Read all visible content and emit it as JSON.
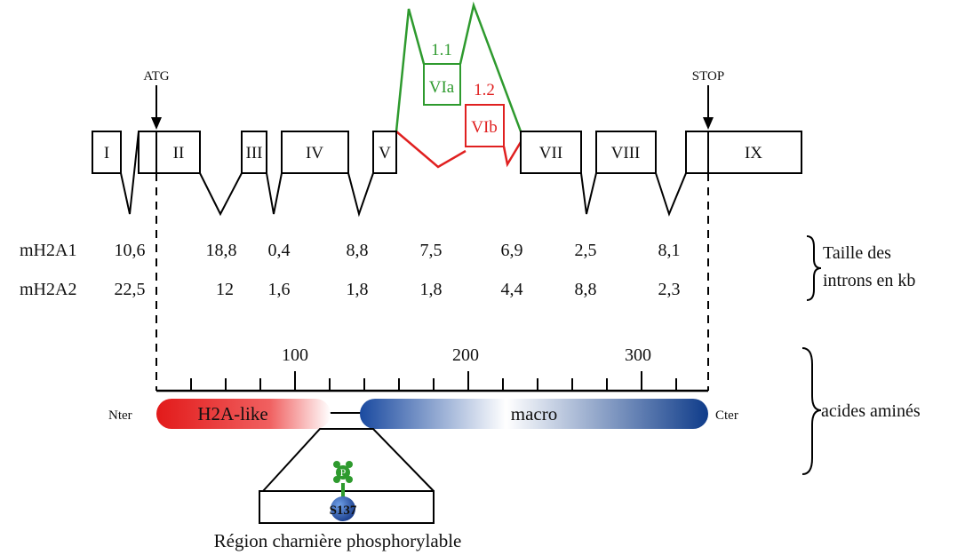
{
  "gene": {
    "start_codon": "ATG",
    "stop_codon": "STOP",
    "exons": [
      "I",
      "II",
      "III",
      "IV",
      "V",
      "VII",
      "VIII",
      "IX"
    ],
    "alt_exon_a": {
      "label": "VIa",
      "variant": "1.1",
      "color": "#2e9a2e"
    },
    "alt_exon_b": {
      "label": "VIb",
      "variant": "1.2",
      "color": "#e02020"
    }
  },
  "introns": {
    "rows": [
      {
        "name": "mH2A1",
        "values": [
          "10,6",
          "18,8",
          "0,4",
          "8,8",
          "7,5",
          "6,9",
          "2,5",
          "8,1"
        ]
      },
      {
        "name": "mH2A2",
        "values": [
          "22,5",
          "12",
          "1,6",
          "1,8",
          "1,8",
          "4,4",
          "8,8",
          "2,3"
        ]
      }
    ],
    "caption_line1": "Taille des",
    "caption_line2": "introns en kb"
  },
  "protein": {
    "ticks": [
      "100",
      "200",
      "300"
    ],
    "n_term": "Nter",
    "c_term": "Cter",
    "domain_1": {
      "label": "H2A-like",
      "color": "#e02020"
    },
    "domain_2": {
      "label": "macro",
      "color": "#1a4aa0"
    },
    "caption": "acides aminés",
    "phospho_label": "P",
    "phospho_color": "#2e9a2e",
    "site_label": "S137",
    "region_caption": "Région charnière phosphorylable"
  }
}
